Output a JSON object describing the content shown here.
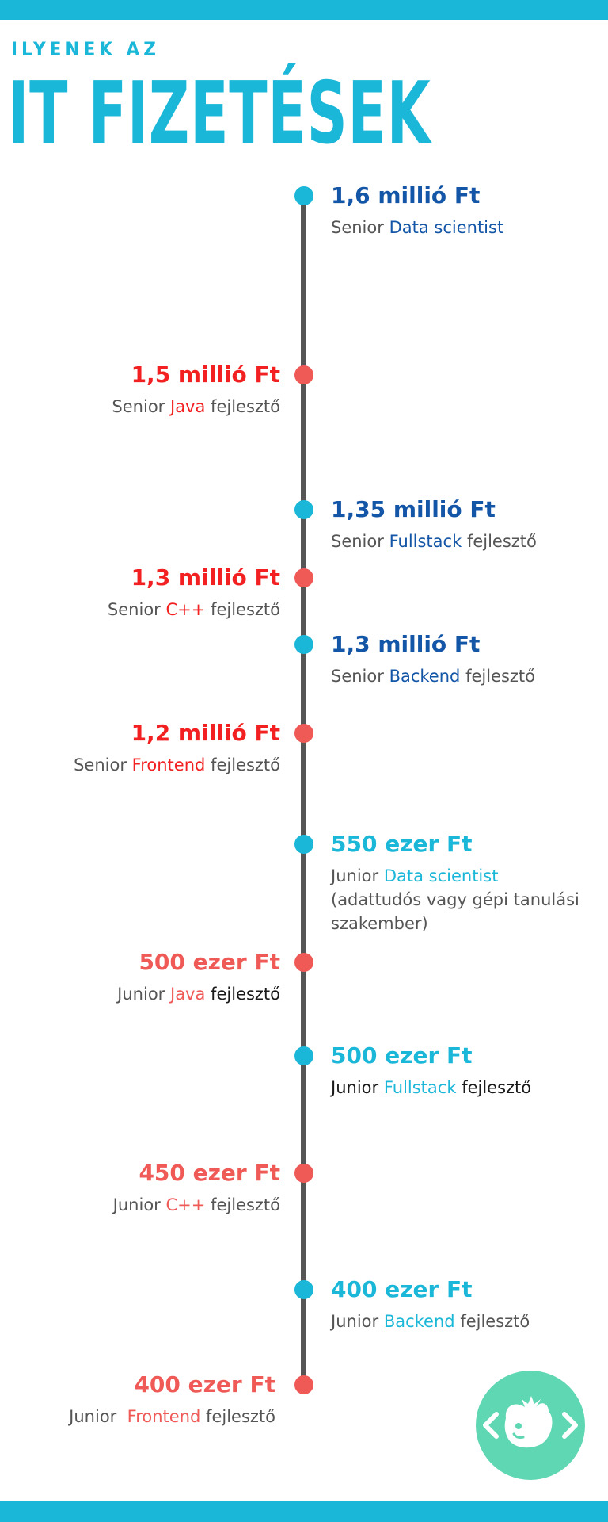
{
  "header": {
    "kicker": "ILYENEK AZ",
    "title": "IT FIZETÉSEK"
  },
  "colors": {
    "accent_cyan": "#1bb7d8",
    "senior_blue": "#1355a6",
    "senior_red": "#f22020",
    "junior_red": "#ef5a57",
    "timeline": "#555555",
    "logo_green": "#5fd7b2"
  },
  "timeline": [
    {
      "amount": "1,6 millió Ft",
      "prefix": "Senior",
      "role": "Data scientist",
      "suffix": ""
    },
    {
      "amount": "1,5 millió Ft",
      "prefix": "Senior",
      "role": "Java",
      "suffix": "fejlesztő"
    },
    {
      "amount": "1,35 millió Ft",
      "prefix": "Senior",
      "role": "Fullstack",
      "suffix": "fejlesztő"
    },
    {
      "amount": "1,3 millió Ft",
      "prefix": "Senior",
      "role": "C++",
      "suffix": "fejlesztő"
    },
    {
      "amount": "1,3 millió Ft",
      "prefix": "Senior",
      "role": "Backend",
      "suffix": "fejlesztő"
    },
    {
      "amount": "1,2 millió Ft",
      "prefix": "Senior",
      "role": "Frontend",
      "suffix": "fejlesztő"
    },
    {
      "amount": "550 ezer Ft",
      "prefix": "Junior",
      "role": "Data scientist",
      "suffix": "",
      "note_1": "(adattudós vagy gépi tanulási",
      "note_2": "szakember)"
    },
    {
      "amount": "500 ezer Ft",
      "prefix": "Junior",
      "role": "Java",
      "suffix": "fejlesztő"
    },
    {
      "amount": "500 ezer Ft",
      "prefix": "Junior",
      "role": "Fullstack",
      "suffix": "fejlesztő"
    },
    {
      "amount": "450 ezer Ft",
      "prefix": "Junior",
      "role": "C++",
      "suffix": "fejlesztő"
    },
    {
      "amount": "400 ezer Ft",
      "prefix": "Junior",
      "role": "Backend",
      "suffix": "fejlesztő"
    },
    {
      "amount": "400 ezer Ft",
      "prefix": "Junior",
      "role": "Frontend",
      "suffix": "fejlesztő"
    }
  ],
  "logo": {
    "icon": "code-brackets-fruit-logo-icon"
  }
}
